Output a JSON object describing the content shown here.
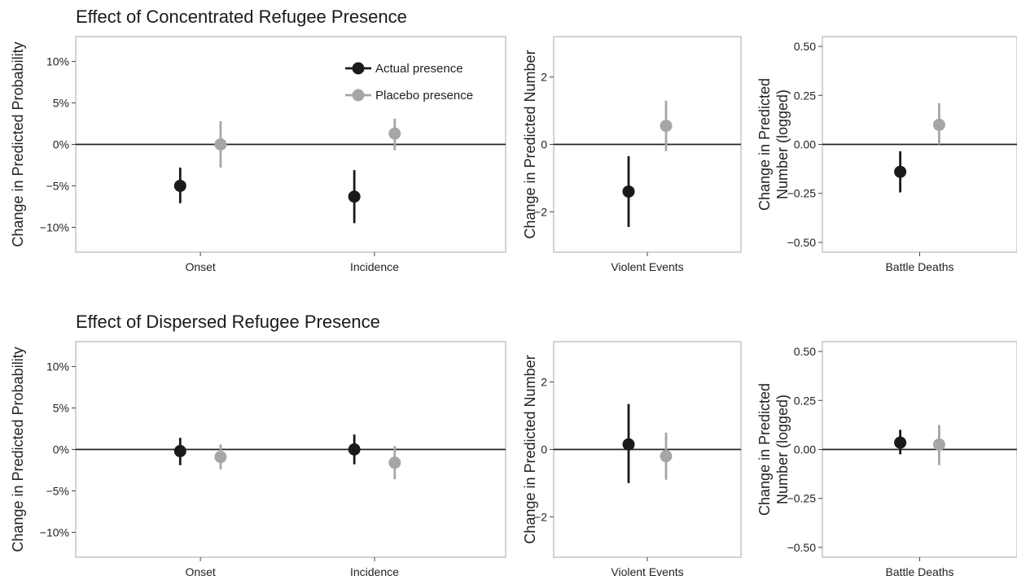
{
  "figure": {
    "rows": [
      {
        "title": "Effect of Concentrated Refugee Presence"
      },
      {
        "title": "Effect of Dispersed Refugee Presence"
      }
    ]
  },
  "legend": {
    "position": "top-right of first panel",
    "items": [
      {
        "label": "Actual presence",
        "color": "#1a1a1a"
      },
      {
        "label": "Placebo presence",
        "color": "#a6a6a6"
      }
    ]
  },
  "chart_data": [
    {
      "type": "scatter",
      "row_title": "Effect of Concentrated Refugee Presence",
      "ylabel": "Change in Predicted Probability",
      "categories": [
        "Onset",
        "Incidence"
      ],
      "ylim": [
        -0.13,
        0.13
      ],
      "yticks": [
        {
          "value": 0.1,
          "label": "10%"
        },
        {
          "value": 0.05,
          "label": "5%"
        },
        {
          "value": 0.0,
          "label": "0%"
        },
        {
          "value": -0.05,
          "label": "−5%"
        },
        {
          "value": -0.1,
          "label": "−10%"
        }
      ],
      "series": [
        {
          "name": "Actual presence",
          "color": "#1a1a1a",
          "points": [
            {
              "category": "Onset",
              "estimate": -0.05,
              "lower": -0.071,
              "upper": -0.028
            },
            {
              "category": "Incidence",
              "estimate": -0.063,
              "lower": -0.095,
              "upper": -0.031
            }
          ]
        },
        {
          "name": "Placebo presence",
          "color": "#a6a6a6",
          "points": [
            {
              "category": "Onset",
              "estimate": 0.0,
              "lower": -0.028,
              "upper": 0.028
            },
            {
              "category": "Incidence",
              "estimate": 0.013,
              "lower": -0.007,
              "upper": 0.031
            }
          ]
        }
      ],
      "zero_line": true,
      "grid": false
    },
    {
      "type": "scatter",
      "row_title": "Effect of Concentrated Refugee Presence",
      "ylabel": "Change in Predicted Number",
      "categories": [
        "Violent Events"
      ],
      "ylim": [
        -3.2,
        3.2
      ],
      "yticks": [
        {
          "value": 2,
          "label": "2"
        },
        {
          "value": 0,
          "label": "0"
        },
        {
          "value": -2,
          "label": "−2"
        }
      ],
      "series": [
        {
          "name": "Actual presence",
          "color": "#1a1a1a",
          "points": [
            {
              "category": "Violent Events",
              "estimate": -1.4,
              "lower": -2.45,
              "upper": -0.35
            }
          ]
        },
        {
          "name": "Placebo presence",
          "color": "#a6a6a6",
          "points": [
            {
              "category": "Violent Events",
              "estimate": 0.55,
              "lower": -0.2,
              "upper": 1.3
            }
          ]
        }
      ],
      "zero_line": true,
      "grid": false
    },
    {
      "type": "scatter",
      "row_title": "Effect of Concentrated Refugee Presence",
      "ylabel": "Change in Predicted Number (logged)",
      "categories": [
        "Battle Deaths"
      ],
      "ylim": [
        -0.55,
        0.55
      ],
      "yticks": [
        {
          "value": 0.5,
          "label": "0.50"
        },
        {
          "value": 0.25,
          "label": "0.25"
        },
        {
          "value": 0.0,
          "label": "0.00"
        },
        {
          "value": -0.25,
          "label": "−0.25"
        },
        {
          "value": -0.5,
          "label": "−0.50"
        }
      ],
      "series": [
        {
          "name": "Actual presence",
          "color": "#1a1a1a",
          "points": [
            {
              "category": "Battle Deaths",
              "estimate": -0.14,
              "lower": -0.245,
              "upper": -0.035
            }
          ]
        },
        {
          "name": "Placebo presence",
          "color": "#a6a6a6",
          "points": [
            {
              "category": "Battle Deaths",
              "estimate": 0.1,
              "lower": 0.0,
              "upper": 0.21
            }
          ]
        }
      ],
      "zero_line": true,
      "grid": false
    },
    {
      "type": "scatter",
      "row_title": "Effect of Dispersed Refugee Presence",
      "ylabel": "Change in Predicted Probability",
      "categories": [
        "Onset",
        "Incidence"
      ],
      "ylim": [
        -0.13,
        0.13
      ],
      "yticks": [
        {
          "value": 0.1,
          "label": "10%"
        },
        {
          "value": 0.05,
          "label": "5%"
        },
        {
          "value": 0.0,
          "label": "0%"
        },
        {
          "value": -0.05,
          "label": "−5%"
        },
        {
          "value": -0.1,
          "label": "−10%"
        }
      ],
      "series": [
        {
          "name": "Actual presence",
          "color": "#1a1a1a",
          "points": [
            {
              "category": "Onset",
              "estimate": -0.002,
              "lower": -0.019,
              "upper": 0.014
            },
            {
              "category": "Incidence",
              "estimate": 0.0,
              "lower": -0.018,
              "upper": 0.018
            }
          ]
        },
        {
          "name": "Placebo presence",
          "color": "#a6a6a6",
          "points": [
            {
              "category": "Onset",
              "estimate": -0.009,
              "lower": -0.024,
              "upper": 0.006
            },
            {
              "category": "Incidence",
              "estimate": -0.016,
              "lower": -0.036,
              "upper": 0.004
            }
          ]
        }
      ],
      "zero_line": true,
      "grid": false
    },
    {
      "type": "scatter",
      "row_title": "Effect of Dispersed Refugee Presence",
      "ylabel": "Change in Predicted Number",
      "categories": [
        "Violent Events"
      ],
      "ylim": [
        -3.2,
        3.2
      ],
      "yticks": [
        {
          "value": 2,
          "label": "2"
        },
        {
          "value": 0,
          "label": "0"
        },
        {
          "value": -2,
          "label": "−2"
        }
      ],
      "series": [
        {
          "name": "Actual presence",
          "color": "#1a1a1a",
          "points": [
            {
              "category": "Violent Events",
              "estimate": 0.15,
              "lower": -1.0,
              "upper": 1.35
            }
          ]
        },
        {
          "name": "Placebo presence",
          "color": "#a6a6a6",
          "points": [
            {
              "category": "Violent Events",
              "estimate": -0.2,
              "lower": -0.9,
              "upper": 0.5
            }
          ]
        }
      ],
      "zero_line": true,
      "grid": false
    },
    {
      "type": "scatter",
      "row_title": "Effect of Dispersed Refugee Presence",
      "ylabel": "Change in Predicted Number (logged)",
      "categories": [
        "Battle Deaths"
      ],
      "ylim": [
        -0.55,
        0.55
      ],
      "yticks": [
        {
          "value": 0.5,
          "label": "0.50"
        },
        {
          "value": 0.25,
          "label": "0.25"
        },
        {
          "value": 0.0,
          "label": "0.00"
        },
        {
          "value": -0.25,
          "label": "−0.25"
        },
        {
          "value": -0.5,
          "label": "−0.50"
        }
      ],
      "series": [
        {
          "name": "Actual presence",
          "color": "#1a1a1a",
          "points": [
            {
              "category": "Battle Deaths",
              "estimate": 0.035,
              "lower": -0.025,
              "upper": 0.1
            }
          ]
        },
        {
          "name": "Placebo presence",
          "color": "#a6a6a6",
          "points": [
            {
              "category": "Battle Deaths",
              "estimate": 0.025,
              "lower": -0.08,
              "upper": 0.125
            }
          ]
        }
      ],
      "zero_line": true,
      "grid": false
    }
  ]
}
